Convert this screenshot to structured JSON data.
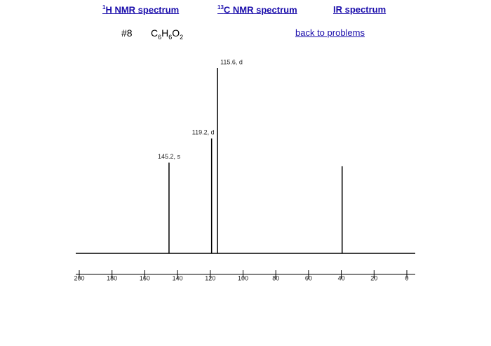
{
  "nav": [
    {
      "sup": "1",
      "text": "H NMR spectrum"
    },
    {
      "sup": "13",
      "text": "C NMR spectrum"
    },
    {
      "text": "IR spectrum"
    }
  ],
  "problem": {
    "number": "#8",
    "formula": [
      "C",
      "6",
      "H",
      "6",
      "O",
      "2"
    ],
    "back_link": "back to problems"
  },
  "chart_data": {
    "type": "stick",
    "x": [
      145.2,
      119.2,
      115.6,
      39.5
    ],
    "values": [
      49,
      62,
      100,
      47
    ],
    "annotations": [
      "145.2, s",
      "119.2, d",
      "115.6, d",
      null
    ],
    "color": "#000000",
    "xlim": [
      200,
      0
    ],
    "xticks": [
      200,
      180,
      160,
      140,
      120,
      100,
      80,
      60,
      40,
      20,
      0
    ],
    "ylim": [
      0,
      100
    ]
  }
}
